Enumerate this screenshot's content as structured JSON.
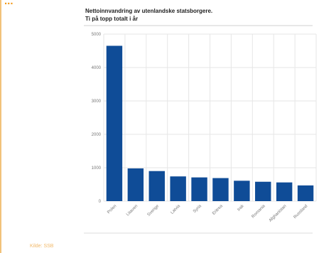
{
  "header": {
    "heading_partial": "...",
    "title_line1": "Nettoinnvandring av utenlandske statsborgere.",
    "title_line2": "Ti på topp totalt i år"
  },
  "footer": {
    "source": "Kilde: SSB"
  },
  "colors": {
    "bar": "#0f4c97",
    "heading": "#f39a1a",
    "source": "#f2b96a",
    "gridline": "#e6e6e6"
  },
  "chart_data": {
    "type": "bar",
    "title": "Nettoinnvandring av utenlandske statsborgere. Ti på topp totalt i år",
    "categories": [
      "Polen",
      "Litauen",
      "Sverige",
      "Latvia",
      "Syria",
      "Eritrea",
      "Irak",
      "Romania",
      "Afghanistan",
      "Russland"
    ],
    "values": [
      4650,
      980,
      900,
      740,
      710,
      690,
      610,
      580,
      560,
      470
    ],
    "yticks": [
      0,
      1000,
      2000,
      3000,
      4000,
      5000
    ],
    "ylim": [
      0,
      5000
    ],
    "grid": true,
    "legend": "none"
  }
}
